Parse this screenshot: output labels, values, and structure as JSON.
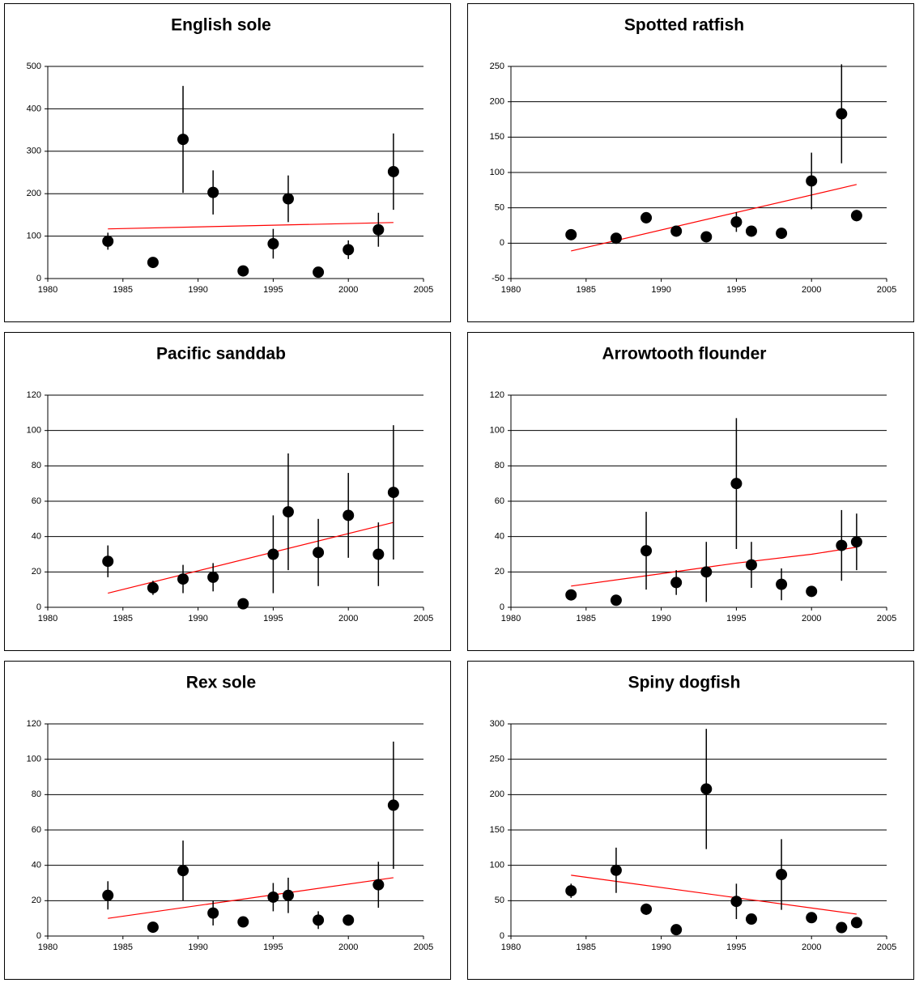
{
  "chart_data": [
    {
      "type": "scatter",
      "title": "English sole",
      "x": [
        1984,
        1987,
        1989,
        1991,
        1993,
        1995,
        1996,
        1998,
        2000,
        2002,
        2003
      ],
      "series": [
        {
          "color": "#000000",
          "values": [
            88,
            38,
            328,
            203,
            18,
            82,
            188,
            15,
            68,
            115,
            252
          ],
          "errors": [
            20,
            0,
            126,
            52,
            0,
            35,
            55,
            0,
            22,
            40,
            90
          ]
        }
      ],
      "trend": {
        "color": "#ff0000",
        "x": [
          1984,
          2003
        ],
        "values": [
          117,
          132
        ]
      },
      "xlim": [
        1980,
        2005
      ],
      "xticks": [
        1980,
        1985,
        1990,
        1995,
        2000,
        2005
      ],
      "ylim": [
        0,
        500
      ],
      "yticks": [
        0,
        100,
        200,
        300,
        400,
        500
      ],
      "grid": true
    },
    {
      "type": "scatter",
      "title": "Spotted ratfish",
      "x": [
        1984,
        1987,
        1989,
        1991,
        1993,
        1995,
        1996,
        1998,
        2000,
        2002,
        2003
      ],
      "series": [
        {
          "color": "#000000",
          "values": [
            12,
            7,
            36,
            17,
            9,
            30,
            17,
            14,
            88,
            183,
            39
          ],
          "errors": [
            0,
            5,
            8,
            0,
            3,
            14,
            3,
            0,
            40,
            70,
            8
          ]
        }
      ],
      "trend": {
        "color": "#ff0000",
        "x": [
          1984,
          2003
        ],
        "values": [
          -11,
          83
        ]
      },
      "xlim": [
        1980,
        2005
      ],
      "xticks": [
        1980,
        1985,
        1990,
        1995,
        2000,
        2005
      ],
      "ylim": [
        -50,
        250
      ],
      "yticks": [
        -50,
        0,
        50,
        100,
        150,
        200,
        250
      ],
      "grid": true
    },
    {
      "type": "scatter",
      "title": "Pacific sanddab",
      "x": [
        1984,
        1987,
        1989,
        1991,
        1993,
        1995,
        1996,
        1998,
        2000,
        2002,
        2003
      ],
      "series": [
        {
          "color": "#000000",
          "values": [
            26,
            11,
            16,
            17,
            2,
            30,
            54,
            31,
            52,
            30,
            65
          ],
          "errors": [
            9,
            4,
            8,
            8,
            0,
            22,
            33,
            19,
            24,
            18,
            38
          ]
        }
      ],
      "trend": {
        "color": "#ff0000",
        "x": [
          1984,
          2003
        ],
        "values": [
          8,
          48
        ]
      },
      "xlim": [
        1980,
        2005
      ],
      "xticks": [
        1980,
        1985,
        1990,
        1995,
        2000,
        2005
      ],
      "ylim": [
        0,
        120
      ],
      "yticks": [
        0,
        20,
        40,
        60,
        80,
        100,
        120
      ],
      "grid": true
    },
    {
      "type": "scatter",
      "title": "Arrowtooth flounder",
      "x": [
        1984,
        1987,
        1989,
        1991,
        1993,
        1995,
        1996,
        1998,
        2000,
        2002,
        2003
      ],
      "series": [
        {
          "color": "#000000",
          "values": [
            7,
            4,
            32,
            14,
            20,
            70,
            24,
            13,
            9,
            35,
            37
          ],
          "errors": [
            0,
            0,
            22,
            7,
            17,
            37,
            13,
            9,
            0,
            20,
            16
          ]
        }
      ],
      "trend": {
        "color": "#ff0000",
        "x": [
          1984,
          1990,
          1995,
          2000,
          2003
        ],
        "values": [
          12,
          19,
          25,
          30,
          34
        ]
      },
      "xlim": [
        1980,
        2005
      ],
      "xticks": [
        1980,
        1985,
        1990,
        1995,
        2000,
        2005
      ],
      "ylim": [
        0,
        120
      ],
      "yticks": [
        0,
        20,
        40,
        60,
        80,
        100,
        120
      ],
      "grid": true
    },
    {
      "type": "scatter",
      "title": "Rex sole",
      "x": [
        1984,
        1987,
        1989,
        1991,
        1993,
        1995,
        1996,
        1998,
        2000,
        2002,
        2003
      ],
      "series": [
        {
          "color": "#000000",
          "values": [
            23,
            5,
            37,
            13,
            8,
            22,
            23,
            9,
            9,
            29,
            74
          ],
          "errors": [
            8,
            0,
            17,
            7,
            0,
            8,
            10,
            5,
            0,
            13,
            36
          ]
        }
      ],
      "trend": {
        "color": "#ff0000",
        "x": [
          1984,
          2003
        ],
        "values": [
          10,
          33
        ]
      },
      "xlim": [
        1980,
        2005
      ],
      "xticks": [
        1980,
        1985,
        1990,
        1995,
        2000,
        2005
      ],
      "ylim": [
        0,
        120
      ],
      "yticks": [
        0,
        20,
        40,
        60,
        80,
        100,
        120
      ],
      "grid": true
    },
    {
      "type": "scatter",
      "title": "Spiny dogfish",
      "x": [
        1984,
        1987,
        1989,
        1991,
        1993,
        1995,
        1996,
        1998,
        2000,
        2002,
        2003
      ],
      "series": [
        {
          "color": "#000000",
          "values": [
            64,
            93,
            38,
            9,
            208,
            49,
            24,
            87,
            26,
            12,
            19
          ],
          "errors": [
            10,
            32,
            8,
            0,
            85,
            25,
            0,
            50,
            0,
            0,
            0
          ]
        }
      ],
      "trend": {
        "color": "#ff0000",
        "x": [
          1984,
          2003
        ],
        "values": [
          86,
          31
        ]
      },
      "xlim": [
        1980,
        2005
      ],
      "xticks": [
        1980,
        1985,
        1990,
        1995,
        2000,
        2005
      ],
      "ylim": [
        0,
        300
      ],
      "yticks": [
        0,
        50,
        100,
        150,
        200,
        250,
        300
      ],
      "grid": true
    }
  ]
}
